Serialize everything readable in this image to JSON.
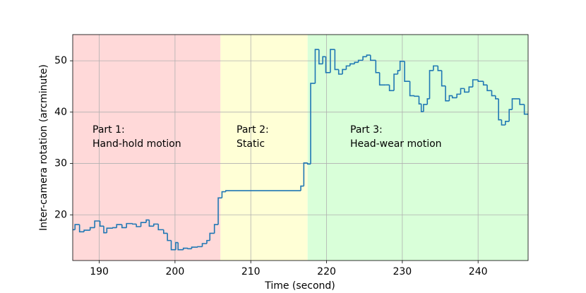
{
  "chart_data": {
    "type": "step",
    "xlabel": "Time (second)",
    "ylabel": "Inter-camera rotation (arcminute)",
    "xlim": [
      186.5,
      246.6
    ],
    "ylim": [
      11.1,
      55.1
    ],
    "xticks": [
      190,
      200,
      210,
      220,
      230,
      240
    ],
    "yticks": [
      20,
      30,
      40,
      50
    ],
    "grid": true,
    "regions": [
      {
        "start": 186.5,
        "end": 206.0,
        "color": "#ffd9d9"
      },
      {
        "start": 206.0,
        "end": 217.5,
        "color": "#ffffd6"
      },
      {
        "start": 217.5,
        "end": 246.6,
        "color": "#d9ffd9"
      }
    ],
    "annotations": [
      [
        "Part 1:",
        "Hand-hold motion"
      ],
      [
        "Part 2:",
        "Static"
      ],
      [
        "Part 3:",
        "Head-wear motion"
      ]
    ],
    "series": [
      {
        "color": "#1f77b4",
        "x": [
          186.5,
          186.8,
          187.4,
          188.0,
          188.8,
          189.4,
          190.1,
          190.6,
          191.0,
          191.8,
          192.3,
          193.0,
          193.6,
          194.4,
          194.9,
          195.5,
          196.2,
          196.6,
          197.2,
          197.8,
          198.5,
          199.0,
          199.5,
          200.1,
          200.4,
          201.1,
          201.7,
          202.2,
          203.0,
          203.6,
          204.2,
          204.6,
          205.2,
          205.7,
          206.2,
          206.7,
          216.6,
          217.0,
          217.5,
          217.9,
          218.5,
          219.0,
          219.5,
          219.9,
          220.5,
          221.1,
          221.6,
          222.1,
          222.6,
          223.1,
          223.7,
          224.2,
          224.8,
          225.3,
          225.8,
          226.5,
          227.0,
          227.8,
          228.3,
          228.9,
          229.4,
          229.7,
          230.3,
          231.0,
          231.6,
          232.2,
          232.5,
          232.8,
          233.3,
          233.6,
          234.1,
          234.7,
          235.2,
          235.7,
          236.2,
          236.6,
          237.2,
          237.7,
          238.2,
          238.8,
          239.3,
          240.0,
          240.7,
          241.2,
          241.8,
          242.3,
          242.7,
          243.1,
          243.6,
          244.1,
          244.5,
          245.5,
          246.1
        ],
        "values": [
          17.1,
          18.1,
          16.7,
          17.0,
          17.5,
          18.8,
          17.8,
          16.5,
          17.4,
          17.5,
          18.1,
          17.5,
          18.3,
          18.2,
          17.7,
          18.5,
          19.0,
          17.8,
          18.2,
          17.1,
          16.4,
          15.0,
          13.2,
          14.6,
          13.2,
          13.5,
          13.4,
          13.7,
          13.8,
          14.4,
          15.0,
          16.4,
          18.1,
          23.3,
          24.5,
          24.7,
          25.6,
          30.1,
          29.9,
          45.6,
          52.2,
          49.4,
          50.8,
          47.7,
          52.2,
          48.3,
          47.4,
          48.3,
          49.0,
          49.4,
          49.7,
          50.1,
          50.8,
          51.1,
          50.1,
          47.7,
          45.3,
          45.3,
          44.2,
          47.4,
          48.1,
          49.9,
          46.0,
          43.2,
          43.1,
          41.6,
          40.1,
          41.5,
          42.6,
          48.1,
          49.0,
          48.1,
          45.1,
          42.2,
          43.2,
          42.8,
          43.5,
          44.6,
          43.9,
          44.9,
          46.3,
          46.0,
          45.3,
          44.2,
          43.2,
          42.6,
          38.5,
          37.5,
          38.2,
          40.5,
          42.6,
          41.5,
          39.6
        ]
      }
    ]
  }
}
